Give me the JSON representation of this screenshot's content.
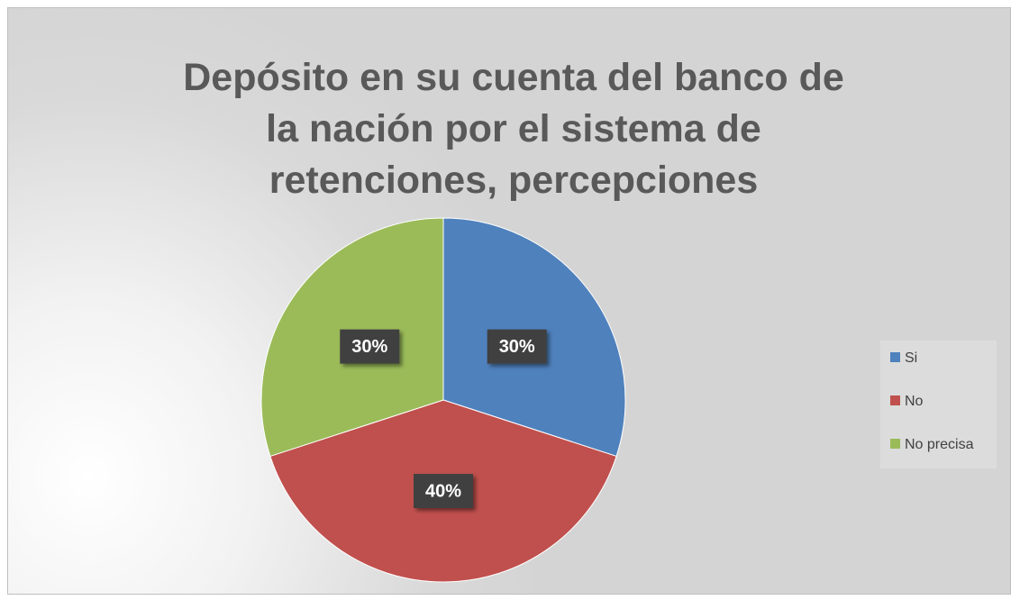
{
  "chart_data": {
    "type": "pie",
    "title": "Depósito en su cuenta del banco de la nación por el sistema de retenciones, percepciones",
    "categories": [
      "Si",
      "No",
      "No precisa"
    ],
    "values": [
      30,
      40,
      30
    ],
    "value_labels": [
      "30%",
      "40%",
      "30%"
    ],
    "colors": [
      "#4f81bd",
      "#c0504d",
      "#9bbb59"
    ],
    "legend": "right"
  }
}
